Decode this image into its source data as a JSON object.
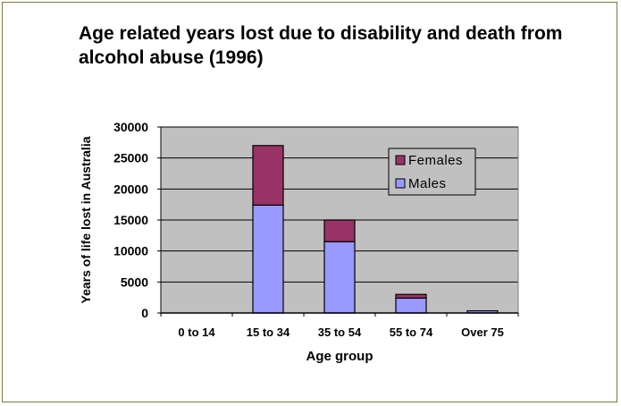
{
  "chart_data": {
    "type": "bar",
    "stacked": true,
    "title": "Age related years lost due to disability and death from alcohol abuse (1996)",
    "xlabel": "Age group",
    "ylabel": "Years of life lost in Australia",
    "ylim": [
      0,
      30000
    ],
    "yticks": [
      0,
      5000,
      10000,
      15000,
      20000,
      25000,
      30000
    ],
    "categories": [
      "0 to 14",
      "15 to 34",
      "35 to 54",
      "55 to 74",
      "Over 75"
    ],
    "series": [
      {
        "name": "Males",
        "color": "#9999ff",
        "values": [
          0,
          17400,
          11500,
          2400,
          350
        ]
      },
      {
        "name": "Females",
        "color": "#993366",
        "values": [
          0,
          9600,
          3500,
          600,
          0
        ]
      }
    ],
    "legend": {
      "placement": "top-right",
      "entries": [
        "Females",
        "Males"
      ]
    },
    "grid": true,
    "plot_background": "#c0c0c0"
  }
}
